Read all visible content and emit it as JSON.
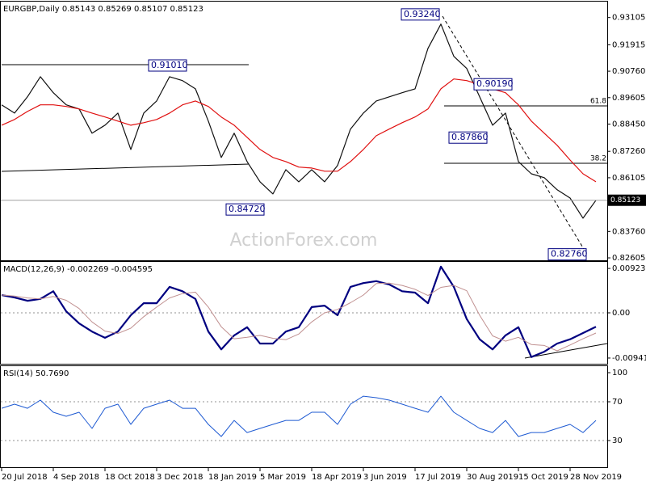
{
  "chart_data": [
    {
      "type": "line",
      "title": "EURGBP,Daily 0.85143 0.85269 0.85107 0.85123",
      "categories": [
        "20 Jul 2018",
        null,
        null,
        null,
        "4 Sep 2018",
        null,
        null,
        null,
        "18 Oct 2018",
        null,
        null,
        null,
        "3 Dec 2018",
        null,
        null,
        null,
        "18 Jan 2019",
        null,
        null,
        null,
        "5 Mar 2019",
        null,
        null,
        null,
        "18 Apr 2019",
        null,
        null,
        null,
        "3 Jun 2019",
        null,
        null,
        null,
        "17 Jul 2019",
        null,
        null,
        null,
        "30 Aug 2019",
        null,
        null,
        null,
        "15 Oct 2019",
        null,
        null,
        null,
        "28 Nov 2019",
        null,
        null
      ],
      "series": [
        {
          "color": "#101010",
          "width": 1.2,
          "values": [
            0.8929,
            0.8893,
            0.8964,
            0.9052,
            0.8982,
            0.8929,
            0.8911,
            0.8805,
            0.884,
            0.8893,
            0.8734,
            0.8893,
            0.8946,
            0.9052,
            0.9035,
            0.8999,
            0.8858,
            0.8699,
            0.8805,
            0.8681,
            0.8593,
            0.854,
            0.8646,
            0.8593,
            0.8646,
            0.8593,
            0.8664,
            0.8823,
            0.8893,
            0.8946,
            0.8964,
            0.8982,
            0.8999,
            0.9176,
            0.9282,
            0.9141,
            0.9088,
            0.8964,
            0.884,
            0.8893,
            0.8681,
            0.8628,
            0.8611,
            0.8558,
            0.8522,
            0.8434,
            0.8512
          ]
        },
        {
          "color": "#e01010",
          "width": 1.2,
          "values": [
            0.884,
            0.8865,
            0.89,
            0.8929,
            0.8929,
            0.8922,
            0.8911,
            0.8893,
            0.8876,
            0.8858,
            0.884,
            0.8851,
            0.8865,
            0.8893,
            0.8929,
            0.8946,
            0.8922,
            0.8876,
            0.884,
            0.8787,
            0.8734,
            0.8699,
            0.8681,
            0.8657,
            0.8653,
            0.8639,
            0.8639,
            0.8681,
            0.8734,
            0.8794,
            0.8823,
            0.8851,
            0.8876,
            0.8911,
            0.8999,
            0.9042,
            0.9035,
            0.9017,
            0.8999,
            0.8982,
            0.8929,
            0.8858,
            0.8805,
            0.8752,
            0.8688,
            0.8628,
            0.8593
          ]
        }
      ],
      "ylim": [
        0.825,
        0.938
      ],
      "yticks": [
        0.93105,
        0.91915,
        {
          "value": 0.9076,
          "label": "0.90760"
        },
        0.89605,
        {
          "value": 0.8845,
          "label": "0.88450"
        },
        {
          "value": 0.8726,
          "label": "0.87260"
        },
        0.86105,
        {
          "value": 0.8376,
          "label": "0.83760"
        },
        0.82605
      ],
      "annotations": [
        {
          "label": "0.93240",
          "value": 0.9324
        },
        {
          "label": "0.91010",
          "value": 0.9101
        },
        {
          "label": "0.90190",
          "value": 0.9019
        },
        {
          "label": "0.87860",
          "value": 0.8786
        },
        {
          "label": "0.84720",
          "value": 0.8472
        },
        {
          "label": "0.82760",
          "value": 0.8276
        }
      ],
      "fib_levels": [
        61.8,
        38.2
      ],
      "last_price": 0.85123,
      "watermark": "ActionForex.com"
    },
    {
      "type": "line",
      "title": "MACD(12,26,9) -0.002269 -0.004595",
      "series": [
        {
          "color": "#000080",
          "width": 2.2,
          "values": [
            0.0037,
            0.0032,
            0.0025,
            0.0029,
            0.0045,
            0.0003,
            -0.0022,
            -0.0039,
            -0.0052,
            -0.0039,
            -0.0005,
            0.002,
            0.002,
            0.0054,
            0.0045,
            0.0029,
            -0.0039,
            -0.0076,
            -0.0047,
            -0.003,
            -0.0064,
            -0.0064,
            -0.0039,
            -0.003,
            0.0012,
            0.0015,
            -0.0005,
            0.0054,
            0.0062,
            0.0066,
            0.0059,
            0.0045,
            0.0042,
            0.002,
            0.0096,
            0.0054,
            -0.0013,
            -0.0055,
            -0.0076,
            -0.0047,
            -0.003,
            -0.0092,
            -0.0081,
            -0.0064,
            -0.0055,
            -0.0042,
            -0.0029
          ]
        },
        {
          "color": "#c09090",
          "width": 1,
          "values": [
            0.0037,
            0.0035,
            0.0031,
            0.0029,
            0.0034,
            0.0026,
            0.0009,
            -0.0019,
            -0.0038,
            -0.0043,
            -0.0032,
            -0.0008,
            0.0012,
            0.0031,
            0.004,
            0.0043,
            0.0012,
            -0.0029,
            -0.0054,
            -0.0051,
            -0.0047,
            -0.0053,
            -0.0056,
            -0.0044,
            -0.0019,
            0,
            0.0007,
            0.0021,
            0.0037,
            0.0061,
            0.0062,
            0.0057,
            0.0049,
            0.0036,
            0.0053,
            0.0057,
            0.0046,
            -0.0005,
            -0.0048,
            -0.0059,
            -0.0051,
            -0.0066,
            -0.0068,
            -0.0079,
            -0.0067,
            -0.0054,
            -0.0042
          ]
        }
      ],
      "ylim": [
        -0.0106,
        0.0106
      ],
      "yticks": [
        0.009237,
        {
          "value": 0,
          "label": "0.00"
        },
        -0.009413
      ],
      "levels": [
        0
      ]
    },
    {
      "type": "line",
      "title": "RSI(14) 50.7690",
      "series": [
        {
          "color": "#1e5ad2",
          "width": 1,
          "values": [
            63.3,
            67.5,
            63.3,
            71.7,
            59.2,
            55,
            59.2,
            42.5,
            63.3,
            67.5,
            46.7,
            63.3,
            67.5,
            71.7,
            63.3,
            63.3,
            46.7,
            34.2,
            50.8,
            38.3,
            42.5,
            46.7,
            50.8,
            50.8,
            59.2,
            59.2,
            46.7,
            67.5,
            75.8,
            74.2,
            71.7,
            67.5,
            63.3,
            59.2,
            75.8,
            59.2,
            50.8,
            42.5,
            38.3,
            50.8,
            34.2,
            38.3,
            38.3,
            42.5,
            46.7,
            38.3,
            50.8
          ]
        }
      ],
      "ylim": [
        2.5,
        106.7
      ],
      "yticks": [
        100,
        70,
        30
      ],
      "levels": [
        70,
        30
      ]
    }
  ]
}
